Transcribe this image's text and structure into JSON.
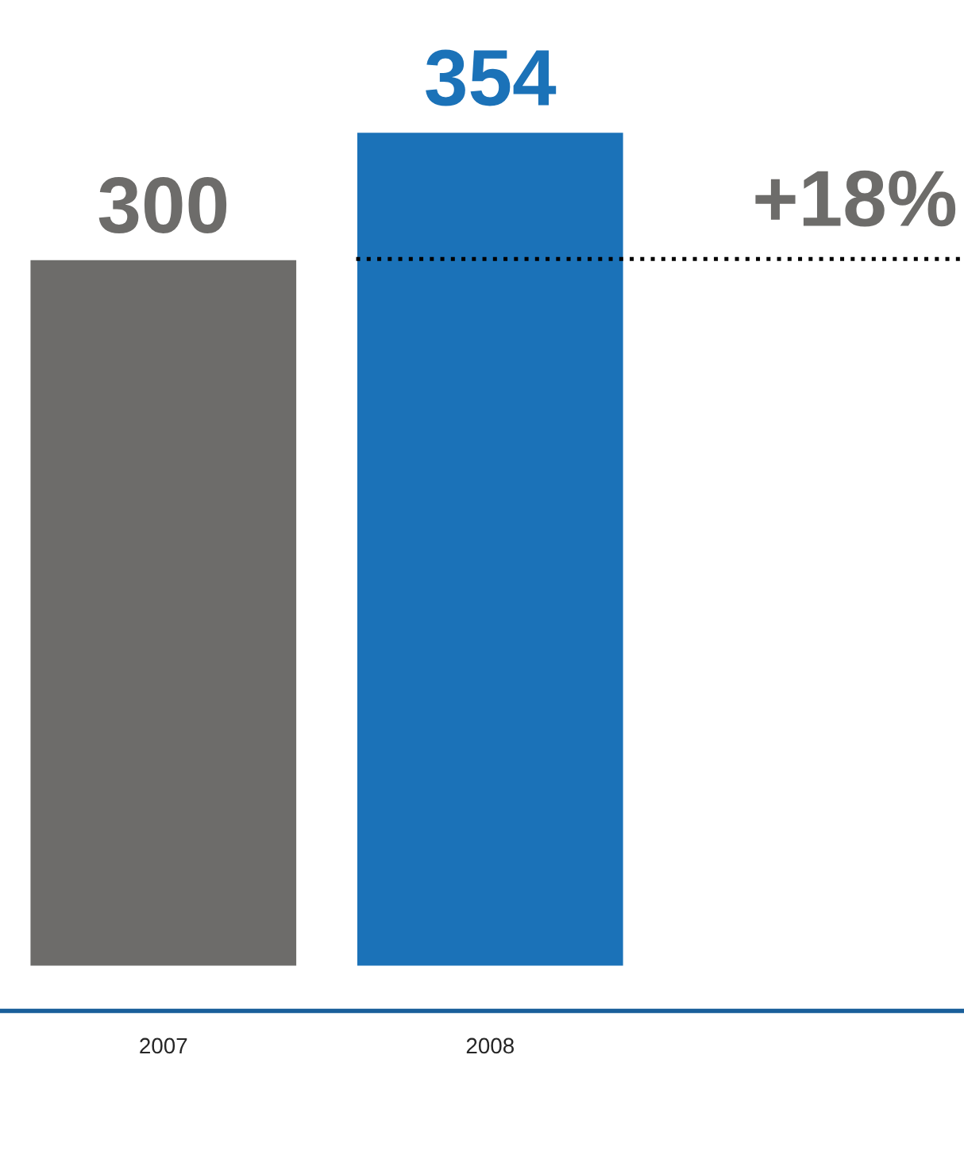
{
  "chart_data": {
    "type": "bar",
    "categories": [
      "2007",
      "2008"
    ],
    "values": [
      300,
      354
    ],
    "colors": [
      "#6d6c6a",
      "#1b72b8"
    ],
    "data_labels": true,
    "ref_lines": [
      {
        "axis": "y",
        "value": 300,
        "color": "#000000",
        "line_style": "dotted"
      }
    ],
    "annotations": [
      "+18%"
    ],
    "grid": false,
    "legend": false
  }
}
